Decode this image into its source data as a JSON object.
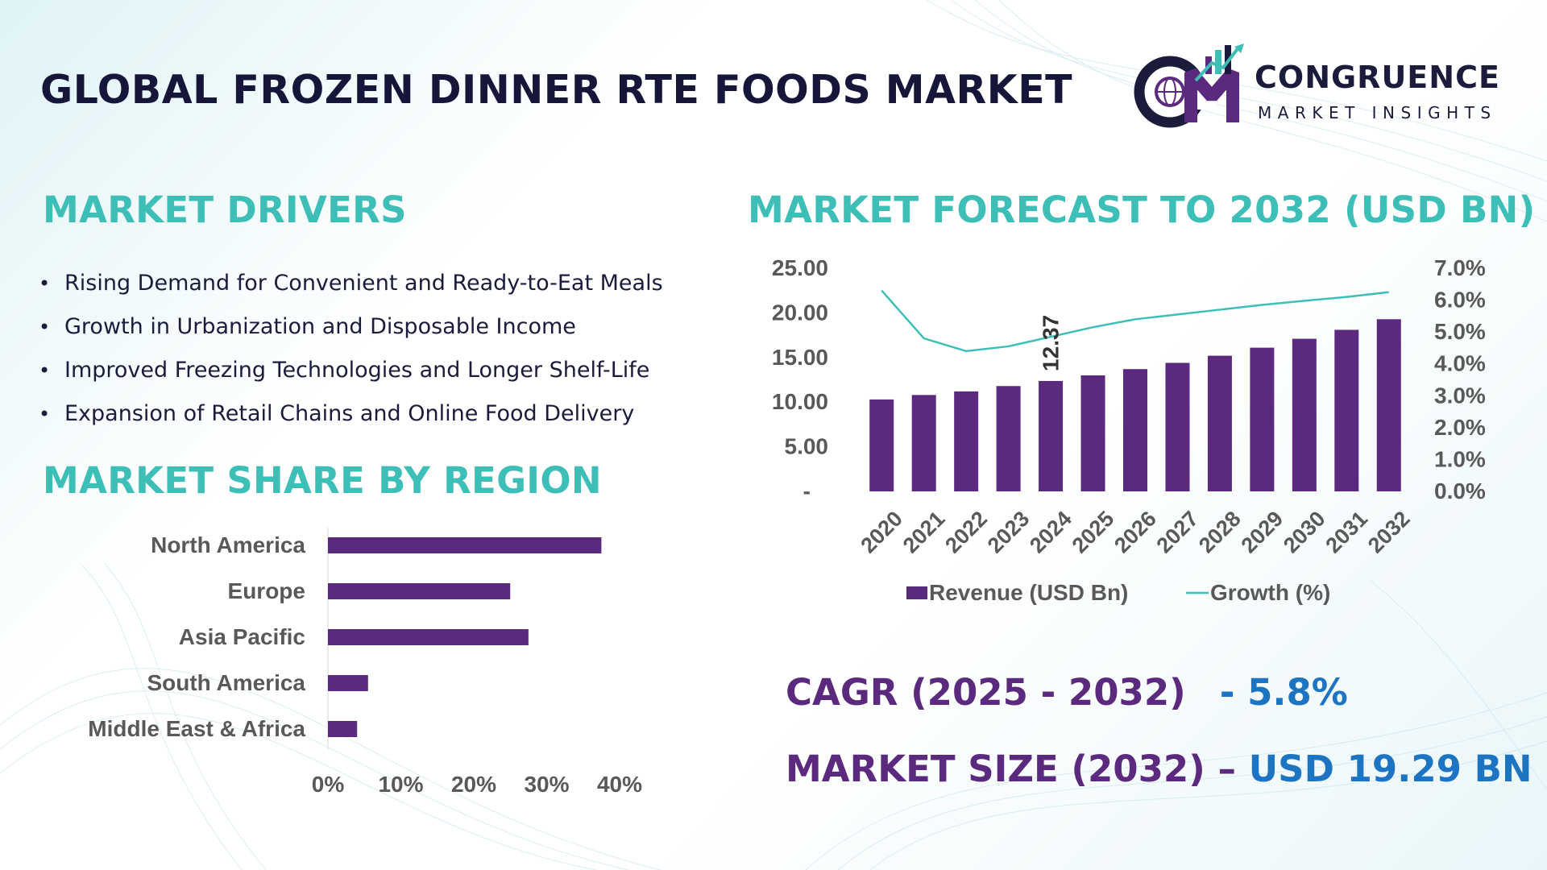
{
  "header": {
    "title": "GLOBAL FROZEN DINNER RTE FOODS MARKET",
    "logo_letters": "CM",
    "logo_name": "CONGRUENCE",
    "logo_tagline": "MARKET INSIGHTS"
  },
  "colors": {
    "title": "#16163a",
    "section_heading": "#3dbfb7",
    "bar": "#5b2a7e",
    "line": "#3dbfb7",
    "metric_label": "#5b2a7e",
    "metric_value": "#1d74c2"
  },
  "drivers": {
    "heading": "MARKET DRIVERS",
    "items": [
      "Rising Demand for Convenient and Ready-to-Eat Meals",
      "Growth in Urbanization and Disposable Income",
      "Improved Freezing Technologies and Longer Shelf-Life",
      "Expansion of Retail Chains and Online Food Delivery"
    ]
  },
  "region": {
    "heading": "MARKET SHARE BY REGION"
  },
  "forecast": {
    "heading": "MARKET FORECAST TO 2032 (USD BN)"
  },
  "metrics": {
    "cagr_label": "CAGR (2025 - 2032)",
    "cagr_value": "- 5.8%",
    "size_label": "MARKET SIZE (2032) –",
    "size_value": "USD 19.29 BN"
  },
  "chart_data": [
    {
      "type": "bar",
      "orientation": "horizontal",
      "categories": [
        "North America",
        "Europe",
        "Asia Pacific",
        "South America",
        "Middle East & Africa"
      ],
      "values": [
        37.5,
        25,
        27.5,
        5.5,
        4
      ],
      "xlim": [
        0,
        40
      ],
      "x_ticks": [
        "0%",
        "10%",
        "20%",
        "30%",
        "40%"
      ],
      "grid": false
    },
    {
      "type": "bar",
      "combo_with": "line",
      "categories": [
        "2020",
        "2021",
        "2022",
        "2023",
        "2024",
        "2025",
        "2026",
        "2027",
        "2028",
        "2029",
        "2030",
        "2031",
        "2032"
      ],
      "series": [
        {
          "name": "Revenue (USD Bn)",
          "axis": "left",
          "values": [
            10.3,
            10.8,
            11.2,
            11.8,
            12.37,
            13.0,
            13.7,
            14.4,
            15.2,
            16.1,
            17.1,
            18.1,
            19.29
          ]
        },
        {
          "name": "Growth (%)",
          "axis": "right",
          "type": "line",
          "values": [
            6.3,
            4.8,
            4.4,
            4.55,
            4.85,
            5.15,
            5.4,
            5.55,
            5.7,
            5.85,
            5.98,
            6.1,
            6.25
          ]
        }
      ],
      "data_labels": [
        {
          "index": 4,
          "text": "12.37"
        }
      ],
      "y_left": {
        "lim": [
          0,
          25
        ],
        "ticks": [
          "-",
          "5.00",
          "10.00",
          "15.00",
          "20.00",
          "25.00"
        ]
      },
      "y_right": {
        "lim": [
          0,
          7
        ],
        "ticks": [
          "0.0%",
          "1.0%",
          "2.0%",
          "3.0%",
          "4.0%",
          "5.0%",
          "6.0%",
          "7.0%"
        ]
      },
      "legend": "bottom",
      "grid": false
    }
  ]
}
